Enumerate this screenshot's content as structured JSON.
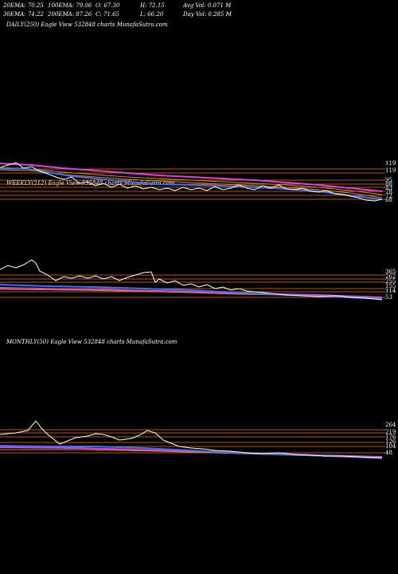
{
  "header": {
    "ema20": "20EMA: 70.25",
    "ema100": "100EMA: 79.06",
    "open": "O: 67.30",
    "high": "H: 72.15",
    "avgvol": "Avg Vol: 0.071 M",
    "ema30": "30EMA: 74.22",
    "ema200": "200EMA: 87.26",
    "close": "C: 71.65",
    "low": "L: 66.20",
    "dayvol": "Day Vol: 0.285 M"
  },
  "panels": {
    "daily": "DAILY(250) Eagle  View  532848  charts MunafaSutra.com",
    "weekly": "WEEKLY(212) Eagle  View  532848  charts MunafaSutra.com",
    "monthly": "MONTHLY(50) Eagle  View  532848  charts MunafaSutra.com"
  },
  "colors": {
    "background": "#000000",
    "price": "#ffffff",
    "ema_blue": "#3a6fff",
    "ema_magenta": "#e040e0",
    "ema_orange": "#d98c1a",
    "level_line": "#b05a10"
  },
  "chart_data": [
    {
      "type": "line",
      "title": "DAILY(250)",
      "series": [],
      "level_labels": [
        "119",
        "119",
        "95",
        "88",
        "83",
        "78",
        "72",
        "68"
      ]
    },
    {
      "type": "line",
      "title": "WEEKLY(212)",
      "series": [],
      "level_labels": [
        "365",
        "262",
        "255",
        "155",
        "114",
        "53"
      ]
    },
    {
      "type": "line",
      "title": "MONTHLY(50)",
      "series": [],
      "level_labels": [
        "264",
        "219",
        "176",
        "126",
        "104",
        "48"
      ]
    }
  ]
}
